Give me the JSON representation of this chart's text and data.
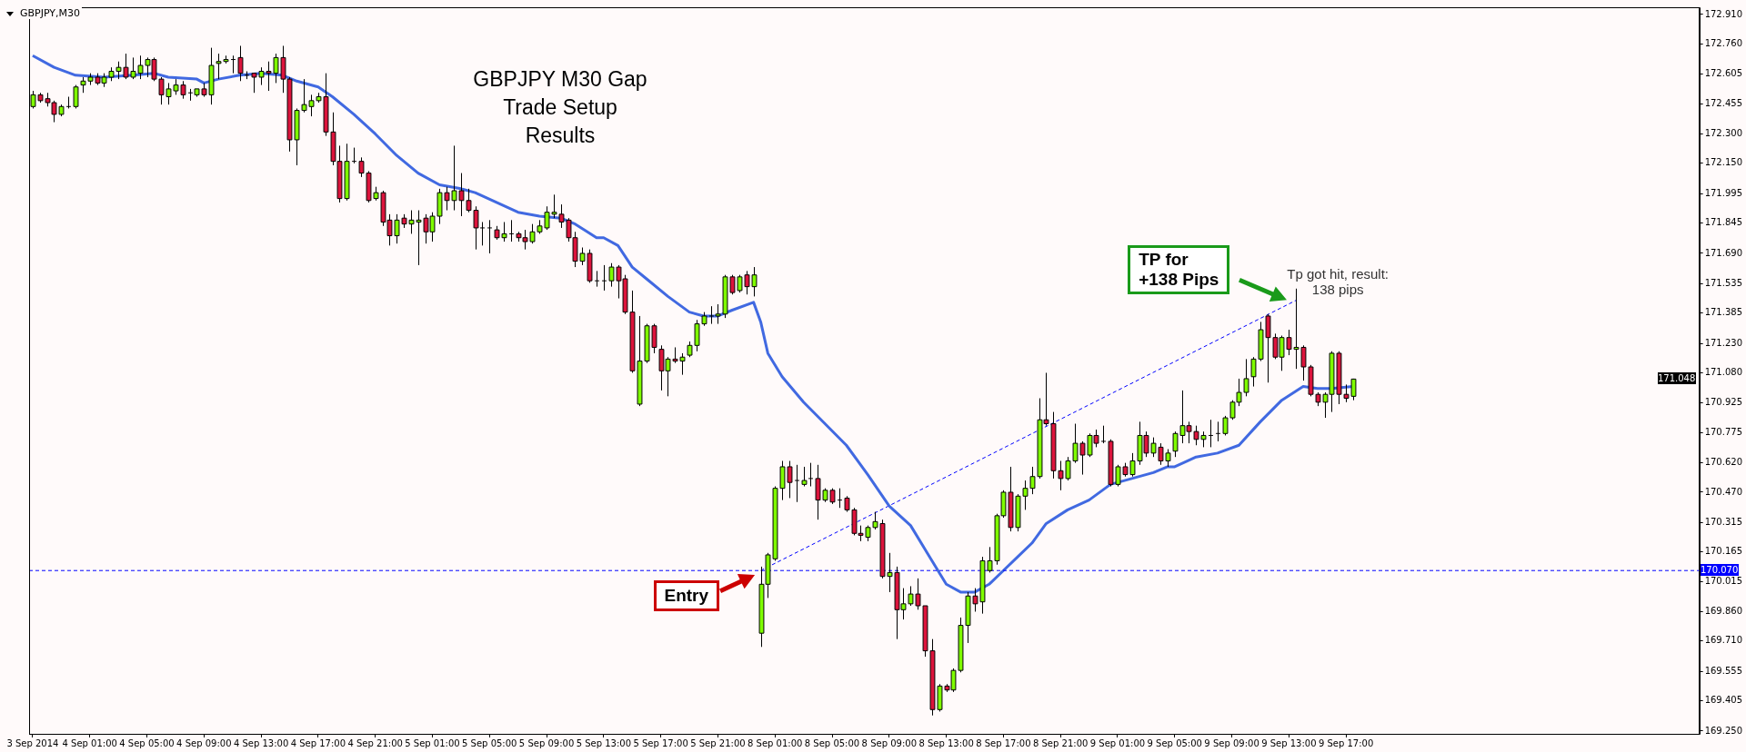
{
  "chart_data": {
    "type": "candlestick",
    "title": "GBPJPY M30 Gap\nTrade Setup\nResults",
    "subtitle": "GBPJPY,M30",
    "categories": [
      "3 Sep 2014",
      null,
      null,
      null,
      null,
      null,
      null,
      null,
      "4 Sep 01:00",
      null,
      null,
      null,
      null,
      null,
      null,
      null,
      "4 Sep 05:00",
      null,
      null,
      null,
      null,
      null,
      null,
      null,
      "4 Sep 09:00",
      null,
      null,
      null,
      null,
      null,
      null,
      null,
      "4 Sep 13:00",
      null,
      null,
      null,
      null,
      null,
      null,
      null,
      "4 Sep 17:00",
      null,
      null,
      null,
      null,
      null,
      null,
      null,
      "4 Sep 21:00",
      null,
      null,
      null,
      null,
      null,
      null,
      null,
      "5 Sep 01:00",
      null,
      null,
      null,
      null,
      null,
      null,
      null,
      "5 Sep 05:00",
      null,
      null,
      null,
      null,
      null,
      null,
      null,
      "5 Sep 09:00",
      null,
      null,
      null,
      null,
      null,
      null,
      null,
      "5 Sep 13:00",
      null,
      null,
      null,
      null,
      null,
      null,
      null,
      "5 Sep 17:00",
      null,
      null,
      null,
      null,
      null,
      null,
      null,
      "5 Sep 21:00",
      null,
      null,
      null,
      null,
      null,
      null,
      null,
      "8 Sep 01:00",
      null,
      null,
      null,
      null,
      null,
      null,
      null,
      "8 Sep 05:00",
      null,
      null,
      null,
      null,
      null,
      null,
      null,
      "8 Sep 09:00",
      null,
      null,
      null,
      null,
      null,
      null,
      null,
      "8 Sep 13:00",
      null,
      null,
      null,
      null,
      null,
      null,
      null,
      "8 Sep 17:00",
      null,
      null,
      null,
      null,
      null,
      null,
      null,
      "8 Sep 21:00",
      null,
      null,
      null,
      null,
      null,
      null,
      null,
      "9 Sep 01:00",
      null,
      null,
      null,
      null,
      null,
      null,
      null,
      "9 Sep 05:00",
      null,
      null,
      null,
      null,
      null,
      null,
      null,
      "9 Sep 09:00",
      null,
      null,
      null,
      null,
      null,
      null,
      null,
      "9 Sep 13:00",
      null,
      null,
      null,
      null,
      null,
      null,
      null,
      "9 Sep 17:00",
      null,
      null,
      null,
      null,
      null,
      null,
      null,
      null,
      null,
      null,
      null,
      null,
      null,
      null,
      null,
      null,
      null,
      null,
      null,
      null,
      null,
      null,
      null,
      null,
      null,
      null,
      null,
      null,
      null,
      null,
      null,
      null,
      null,
      null,
      null,
      null,
      null,
      null,
      null,
      null,
      null,
      null,
      null,
      null,
      null,
      null,
      null,
      null,
      null
    ],
    "ohlc": [
      [
        172.44,
        172.52,
        172.43,
        172.5
      ],
      [
        172.5,
        172.51,
        172.46,
        172.47
      ],
      [
        172.48,
        172.51,
        172.44,
        172.46
      ],
      [
        172.46,
        172.47,
        172.36,
        172.4
      ],
      [
        172.4,
        172.45,
        172.39,
        172.44
      ],
      [
        172.44,
        172.49,
        172.43,
        172.44
      ],
      [
        172.44,
        172.55,
        172.43,
        172.54
      ],
      [
        172.55,
        172.59,
        172.51,
        172.57
      ],
      [
        172.57,
        172.61,
        172.55,
        172.59
      ],
      [
        172.59,
        172.61,
        172.55,
        172.56
      ],
      [
        172.56,
        172.61,
        172.54,
        172.59
      ],
      [
        172.59,
        172.64,
        172.57,
        172.62
      ],
      [
        172.62,
        172.67,
        172.58,
        172.64
      ],
      [
        172.64,
        172.71,
        172.58,
        172.59
      ],
      [
        172.59,
        172.69,
        172.58,
        172.62
      ],
      [
        172.61,
        172.7,
        172.58,
        172.65
      ],
      [
        172.65,
        172.69,
        172.59,
        172.68
      ],
      [
        172.68,
        172.69,
        172.57,
        172.58
      ],
      [
        172.58,
        172.59,
        172.45,
        172.5
      ],
      [
        172.49,
        172.56,
        172.45,
        172.53
      ],
      [
        172.52,
        172.58,
        172.5,
        172.55
      ],
      [
        172.55,
        172.57,
        172.48,
        172.5
      ],
      [
        172.51,
        172.53,
        172.47,
        172.51
      ],
      [
        172.5,
        172.53,
        172.49,
        172.53
      ],
      [
        172.53,
        172.56,
        172.49,
        172.5
      ],
      [
        172.5,
        172.74,
        172.45,
        172.65
      ],
      [
        172.66,
        172.71,
        172.58,
        172.67
      ],
      [
        172.67,
        172.7,
        172.66,
        172.68
      ],
      [
        172.68,
        172.7,
        172.61,
        172.68
      ],
      [
        172.69,
        172.75,
        172.57,
        172.61
      ],
      [
        172.6,
        172.62,
        172.58,
        172.6
      ],
      [
        172.61,
        172.61,
        172.51,
        172.59
      ],
      [
        172.59,
        172.64,
        172.55,
        172.62
      ],
      [
        172.62,
        172.67,
        172.52,
        172.61
      ],
      [
        172.61,
        172.71,
        172.56,
        172.69
      ],
      [
        172.69,
        172.75,
        172.51,
        172.58
      ],
      [
        172.58,
        172.59,
        172.21,
        172.27
      ],
      [
        172.27,
        172.43,
        172.14,
        172.42
      ],
      [
        172.42,
        172.58,
        172.41,
        172.45
      ],
      [
        172.44,
        172.5,
        172.39,
        172.47
      ],
      [
        172.47,
        172.51,
        172.46,
        172.49
      ],
      [
        172.49,
        172.61,
        172.29,
        172.31
      ],
      [
        172.31,
        172.41,
        172.14,
        172.16
      ],
      [
        172.16,
        172.24,
        171.95,
        171.97
      ],
      [
        171.97,
        172.25,
        171.96,
        172.16
      ],
      [
        172.16,
        172.23,
        172.15,
        172.16
      ],
      [
        172.16,
        172.18,
        172.08,
        172.1
      ],
      [
        172.1,
        172.11,
        171.95,
        171.96
      ],
      [
        171.97,
        172.03,
        171.96,
        172.0
      ],
      [
        172.0,
        172.01,
        171.83,
        171.85
      ],
      [
        171.86,
        171.89,
        171.73,
        171.78
      ],
      [
        171.78,
        171.89,
        171.74,
        171.86
      ],
      [
        171.87,
        171.89,
        171.82,
        171.84
      ],
      [
        171.84,
        171.91,
        171.79,
        171.86
      ],
      [
        171.85,
        171.91,
        171.63,
        171.86
      ],
      [
        171.87,
        171.89,
        171.74,
        171.8
      ],
      [
        171.8,
        171.9,
        171.75,
        171.88
      ],
      [
        171.88,
        172.02,
        171.84,
        172.0
      ],
      [
        172.0,
        172.03,
        171.91,
        171.96
      ],
      [
        171.96,
        172.24,
        171.91,
        172.01
      ],
      [
        172.01,
        172.1,
        171.88,
        171.96
      ],
      [
        171.96,
        172.02,
        171.9,
        171.91
      ],
      [
        171.91,
        171.93,
        171.71,
        171.82
      ],
      [
        171.82,
        171.85,
        171.73,
        171.82
      ],
      [
        171.82,
        171.86,
        171.69,
        171.82
      ],
      [
        171.81,
        171.83,
        171.76,
        171.77
      ],
      [
        171.77,
        171.85,
        171.75,
        171.79
      ],
      [
        171.79,
        171.86,
        171.75,
        171.79
      ],
      [
        171.79,
        171.8,
        171.75,
        171.77
      ],
      [
        171.77,
        171.81,
        171.71,
        171.75
      ],
      [
        171.75,
        171.84,
        171.74,
        171.8
      ],
      [
        171.8,
        171.86,
        171.79,
        171.83
      ],
      [
        171.82,
        171.93,
        171.81,
        171.9
      ],
      [
        171.89,
        171.99,
        171.87,
        171.9
      ],
      [
        171.89,
        171.94,
        171.82,
        171.85
      ],
      [
        171.86,
        171.87,
        171.75,
        171.77
      ],
      [
        171.77,
        171.8,
        171.62,
        171.65
      ],
      [
        171.65,
        171.72,
        171.63,
        171.69
      ],
      [
        171.69,
        171.71,
        171.54,
        171.55
      ],
      [
        171.55,
        171.6,
        171.52,
        171.55
      ],
      [
        171.55,
        171.63,
        171.5,
        171.55
      ],
      [
        171.55,
        171.64,
        171.52,
        171.62
      ],
      [
        171.62,
        171.63,
        171.46,
        171.55
      ],
      [
        171.56,
        171.58,
        171.38,
        171.39
      ],
      [
        171.39,
        171.5,
        171.08,
        171.09
      ],
      [
        170.92,
        171.37,
        170.91,
        171.14
      ],
      [
        171.14,
        171.33,
        171.13,
        171.32
      ],
      [
        171.32,
        171.33,
        171.18,
        171.21
      ],
      [
        171.2,
        171.22,
        170.99,
        171.09
      ],
      [
        171.09,
        171.16,
        170.96,
        171.15
      ],
      [
        171.15,
        171.21,
        171.13,
        171.14
      ],
      [
        171.14,
        171.18,
        171.07,
        171.16
      ],
      [
        171.17,
        171.24,
        171.16,
        171.22
      ],
      [
        171.22,
        171.35,
        171.19,
        171.33
      ],
      [
        171.33,
        171.39,
        171.32,
        171.37
      ],
      [
        171.37,
        171.42,
        171.33,
        171.37
      ],
      [
        171.37,
        171.43,
        171.33,
        171.38
      ],
      [
        171.38,
        171.58,
        171.36,
        171.57
      ],
      [
        171.57,
        171.58,
        171.48,
        171.49
      ],
      [
        171.5,
        171.58,
        171.49,
        171.57
      ],
      [
        171.58,
        171.6,
        171.48,
        171.52
      ],
      [
        171.52,
        171.62,
        171.47,
        171.58
      ],
      [
        169.75,
        170.09,
        169.68,
        170.0
      ],
      [
        170.0,
        170.16,
        169.93,
        170.15
      ],
      [
        170.13,
        170.5,
        170.12,
        170.49
      ],
      [
        170.49,
        170.63,
        170.43,
        170.6
      ],
      [
        170.6,
        170.63,
        170.44,
        170.52
      ],
      [
        170.53,
        170.61,
        170.42,
        170.53
      ],
      [
        170.51,
        170.6,
        170.5,
        170.53
      ],
      [
        170.54,
        170.62,
        170.5,
        170.54
      ],
      [
        170.54,
        170.61,
        170.33,
        170.43
      ],
      [
        170.43,
        170.49,
        170.42,
        170.48
      ],
      [
        170.48,
        170.49,
        170.41,
        170.42
      ],
      [
        170.43,
        170.49,
        170.39,
        170.43
      ],
      [
        170.44,
        170.45,
        170.37,
        170.38
      ],
      [
        170.38,
        170.39,
        170.25,
        170.26
      ],
      [
        170.26,
        170.3,
        170.22,
        170.25
      ],
      [
        170.24,
        170.3,
        170.22,
        170.29
      ],
      [
        170.29,
        170.37,
        170.28,
        170.32
      ],
      [
        170.31,
        170.33,
        170.03,
        170.04
      ],
      [
        170.04,
        170.16,
        169.96,
        170.06
      ],
      [
        170.06,
        170.09,
        169.72,
        169.87
      ],
      [
        169.87,
        169.98,
        169.82,
        169.9
      ],
      [
        169.9,
        169.99,
        169.89,
        169.95
      ],
      [
        169.95,
        170.03,
        169.87,
        169.89
      ],
      [
        169.89,
        169.89,
        169.63,
        169.66
      ],
      [
        169.66,
        169.72,
        169.33,
        169.36
      ],
      [
        169.36,
        169.49,
        169.35,
        169.48
      ],
      [
        169.48,
        169.49,
        169.45,
        169.46
      ],
      [
        169.46,
        169.57,
        169.45,
        169.56
      ],
      [
        169.56,
        169.83,
        169.55,
        169.79
      ],
      [
        169.79,
        169.96,
        169.7,
        169.94
      ],
      [
        169.94,
        169.98,
        169.86,
        169.9
      ],
      [
        169.91,
        170.14,
        169.85,
        170.12
      ],
      [
        170.07,
        170.19,
        170.06,
        170.12
      ],
      [
        170.12,
        170.36,
        170.1,
        170.35
      ],
      [
        170.35,
        170.48,
        170.34,
        170.47
      ],
      [
        170.47,
        170.6,
        170.27,
        170.29
      ],
      [
        170.29,
        170.46,
        170.27,
        170.45
      ],
      [
        170.45,
        170.53,
        170.38,
        170.49
      ],
      [
        170.49,
        170.6,
        170.46,
        170.55
      ],
      [
        170.55,
        170.95,
        170.54,
        170.84
      ],
      [
        170.84,
        171.08,
        170.81,
        170.82
      ],
      [
        170.82,
        170.88,
        170.54,
        170.58
      ],
      [
        170.58,
        170.63,
        170.48,
        170.54
      ],
      [
        170.54,
        170.65,
        170.53,
        170.63
      ],
      [
        170.63,
        170.82,
        170.62,
        170.72
      ],
      [
        170.72,
        170.73,
        170.56,
        170.66
      ],
      [
        170.66,
        170.77,
        170.65,
        170.76
      ],
      [
        170.76,
        170.79,
        170.7,
        170.72
      ],
      [
        170.73,
        170.81,
        170.72,
        170.73
      ],
      [
        170.73,
        170.74,
        170.5,
        170.51
      ],
      [
        170.51,
        170.61,
        170.5,
        170.6
      ],
      [
        170.6,
        170.62,
        170.55,
        170.56
      ],
      [
        170.56,
        170.67,
        170.55,
        170.63
      ],
      [
        170.63,
        170.83,
        170.61,
        170.76
      ],
      [
        170.76,
        170.78,
        170.65,
        170.67
      ],
      [
        170.67,
        170.75,
        170.65,
        170.72
      ],
      [
        170.7,
        170.72,
        170.61,
        170.63
      ],
      [
        170.63,
        170.69,
        170.6,
        170.67
      ],
      [
        170.68,
        170.78,
        170.65,
        170.77
      ],
      [
        170.76,
        170.99,
        170.72,
        170.81
      ],
      [
        170.81,
        170.83,
        170.72,
        170.78
      ],
      [
        170.78,
        170.81,
        170.71,
        170.74
      ],
      [
        170.74,
        170.78,
        170.7,
        170.76
      ],
      [
        170.76,
        170.84,
        170.7,
        170.76
      ],
      [
        170.77,
        170.83,
        170.73,
        170.77
      ],
      [
        170.77,
        170.86,
        170.76,
        170.85
      ],
      [
        170.85,
        170.94,
        170.84,
        170.93
      ],
      [
        170.93,
        171.05,
        170.91,
        170.98
      ],
      [
        170.98,
        171.15,
        170.96,
        171.05
      ],
      [
        171.06,
        171.16,
        171.01,
        171.15
      ],
      [
        171.15,
        171.34,
        171.14,
        171.3
      ],
      [
        171.37,
        171.38,
        171.03,
        171.26
      ],
      [
        171.26,
        171.28,
        171.15,
        171.16
      ],
      [
        171.16,
        171.27,
        171.09,
        171.26
      ],
      [
        171.26,
        171.3,
        171.17,
        171.2
      ],
      [
        171.2,
        171.51,
        171.1,
        171.21
      ],
      [
        171.21,
        171.22,
        171.04,
        171.11
      ],
      [
        171.11,
        171.12,
        170.96,
        170.97
      ],
      [
        170.97,
        170.98,
        170.91,
        170.93
      ],
      [
        170.93,
        170.98,
        170.85,
        170.97
      ],
      [
        170.97,
        171.19,
        170.88,
        171.18
      ],
      [
        171.18,
        171.19,
        170.92,
        170.97
      ],
      [
        170.97,
        171.02,
        170.93,
        170.95
      ],
      [
        170.96,
        171.05,
        170.94,
        171.048
      ],
      null,
      null,
      null,
      null,
      null,
      null,
      null,
      null,
      null,
      null,
      null,
      null,
      null,
      null,
      null,
      null,
      null,
      null,
      null,
      null,
      null,
      null,
      null,
      null,
      null,
      null,
      null,
      null,
      null,
      null,
      null,
      null,
      null,
      null,
      null,
      null,
      null,
      null,
      null,
      null,
      null,
      null,
      null,
      null,
      null,
      null,
      null,
      null
    ],
    "series": [
      {
        "type": "line",
        "color": "#4169e1",
        "line_style": "solid",
        "values": [
          172.7,
          null,
          null,
          172.64,
          null,
          null,
          172.6,
          null,
          null,
          null,
          172.59,
          null,
          null,
          null,
          172.6,
          null,
          null,
          172.61,
          null,
          172.59,
          null,
          null,
          null,
          172.58,
          172.56,
          null,
          172.58,
          null,
          null,
          172.6,
          null,
          null,
          172.61,
          null,
          null,
          172.6,
          null,
          172.57,
          null,
          null,
          172.54,
          null,
          172.49,
          null,
          null,
          172.4,
          null,
          null,
          172.3,
          null,
          null,
          172.19,
          null,
          null,
          172.1,
          null,
          null,
          172.04,
          null,
          null,
          172.02,
          null,
          172.0,
          null,
          null,
          171.95,
          null,
          null,
          171.9,
          null,
          null,
          171.88,
          null,
          null,
          171.87,
          null,
          171.84,
          null,
          null,
          171.77,
          171.77,
          null,
          171.73,
          null,
          171.62,
          null,
          171.56,
          null,
          null,
          171.47,
          null,
          null,
          171.39,
          null,
          171.37,
          null,
          171.37,
          null,
          171.4,
          null,
          null,
          171.44,
          171.34,
          171.18,
          null,
          171.06,
          null,
          null,
          170.93,
          null,
          null,
          170.82,
          null,
          null,
          170.71,
          null,
          null,
          170.56,
          null,
          null,
          170.4,
          null,
          null,
          170.3,
          null,
          null,
          170.12,
          null,
          170.0,
          null,
          169.96,
          null,
          169.96,
          null,
          170.0,
          null,
          170.07,
          null,
          170.14,
          null,
          170.21,
          null,
          170.31,
          null,
          null,
          170.38,
          null,
          null,
          170.43,
          null,
          null,
          170.51,
          null,
          null,
          170.54,
          null,
          null,
          170.57,
          null,
          170.6,
          170.6,
          null,
          null,
          170.65,
          null,
          null,
          170.67,
          null,
          null,
          170.71,
          null,
          null,
          170.83,
          null,
          null,
          170.94,
          null,
          null,
          171.01,
          null,
          171.0,
          null,
          171.0,
          null,
          null,
          171.01,
          null,
          null,
          null,
          null,
          null,
          null,
          null,
          null,
          null,
          null,
          null,
          null,
          null,
          null,
          null,
          null,
          null,
          null,
          null,
          null,
          null,
          null,
          null,
          null,
          null,
          null,
          null,
          null,
          null,
          null,
          null,
          null,
          null,
          null,
          null,
          null,
          null,
          null,
          null,
          null,
          null,
          null,
          null,
          null,
          null,
          null,
          null,
          null
        ]
      },
      {
        "type": "line",
        "color": "#0000ff",
        "line_style": "dashed",
        "values": [
          null,
          null,
          null,
          null,
          null,
          null,
          null,
          null,
          null,
          null,
          null,
          null,
          null,
          null,
          null,
          null,
          null,
          null,
          null,
          null,
          null,
          null,
          null,
          null,
          null,
          null,
          null,
          null,
          null,
          null,
          null,
          null,
          null,
          null,
          null,
          null,
          null,
          null,
          null,
          null,
          null,
          null,
          null,
          null,
          null,
          null,
          null,
          null,
          null,
          null,
          null,
          null,
          null,
          null,
          null,
          null,
          null,
          null,
          null,
          null,
          null,
          null,
          null,
          null,
          null,
          null,
          null,
          null,
          null,
          null,
          null,
          null,
          null,
          null,
          null,
          null,
          null,
          null,
          null,
          null,
          null,
          null,
          null,
          null,
          null,
          null,
          null,
          null,
          null,
          null,
          null,
          null,
          null,
          null,
          null,
          null,
          null,
          null,
          null,
          null,
          null,
          null,
          170.07,
          null,
          null,
          null,
          null,
          null,
          null,
          null,
          null,
          null,
          null,
          null,
          null,
          null,
          null,
          null,
          null,
          null,
          null,
          null,
          null,
          null,
          null,
          null,
          null,
          null,
          null,
          null,
          null,
          null,
          null,
          null,
          null,
          null,
          null,
          null,
          null,
          null,
          null,
          null,
          null,
          null,
          null,
          null,
          null,
          null,
          null,
          null,
          null,
          null,
          null,
          null,
          null,
          null,
          null,
          null,
          null,
          null,
          null,
          null,
          null,
          null,
          null,
          null,
          null,
          null,
          null,
          null,
          null,
          null,
          null,
          null,
          null,
          null,
          null,
          171.45,
          null,
          null,
          null,
          null,
          null,
          null,
          null,
          null,
          null,
          null,
          null,
          null,
          null,
          null,
          null,
          null,
          null,
          null,
          null,
          null,
          null,
          null,
          null,
          null,
          null,
          null,
          null,
          null,
          null,
          null,
          null,
          null,
          null,
          null,
          null,
          null,
          null,
          null,
          null,
          null,
          null,
          null,
          null,
          null,
          null,
          null,
          null,
          null,
          null,
          null,
          null,
          null,
          null,
          null,
          null,
          null
        ]
      }
    ],
    "ylim": [
      169.236,
      172.947
    ],
    "yticks": [
      {
        "value": 169.25,
        "label": "169.250"
      },
      {
        "value": 169.405,
        "label": "169.405"
      },
      {
        "value": 169.555,
        "label": "169.555"
      },
      {
        "value": 169.71,
        "label": "169.710"
      },
      {
        "value": 169.86,
        "label": "169.860"
      },
      {
        "value": 170.015,
        "label": "170.015"
      },
      {
        "value": 170.165,
        "label": "170.165"
      },
      {
        "value": 170.315,
        "label": "170.315"
      },
      {
        "value": 170.47,
        "label": "170.470"
      },
      {
        "value": 170.62,
        "label": "170.620"
      },
      {
        "value": 170.775,
        "label": "170.775"
      },
      {
        "value": 170.925,
        "label": "170.925"
      },
      {
        "value": 171.08,
        "label": "171.080"
      },
      {
        "value": 171.23,
        "label": "171.230"
      },
      {
        "value": 171.385,
        "label": "171.385"
      },
      {
        "value": 171.535,
        "label": "171.535"
      },
      {
        "value": 171.69,
        "label": "171.690"
      },
      {
        "value": 171.845,
        "label": "171.845"
      },
      {
        "value": 171.995,
        "label": "171.995"
      },
      {
        "value": 172.15,
        "label": "172.150"
      },
      {
        "value": 172.3,
        "label": "172.300"
      },
      {
        "value": 172.455,
        "label": "172.455"
      },
      {
        "value": 172.605,
        "label": "172.605"
      },
      {
        "value": 172.76,
        "label": "172.760"
      },
      {
        "value": 172.91,
        "label": "172.910"
      }
    ],
    "ref_lines": [
      {
        "axis": "y",
        "value": 170.07,
        "label": "170.070",
        "color": "#0000ff",
        "line_style": "dashed"
      }
    ],
    "annotations": [
      {
        "text": "Entry",
        "y": 170.07
      },
      "TP for\n+138 Pips",
      "Tp got hit, result:\n138 pips",
      {
        "text": "171.048",
        "y": 171.048
      }
    ]
  }
}
